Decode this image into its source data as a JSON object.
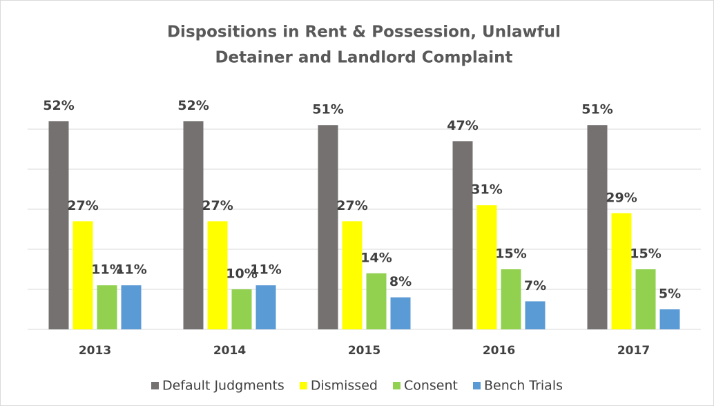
{
  "chart_data": {
    "type": "bar",
    "title": [
      "Dispositions in Rent & Possession, Unlawful",
      "Detainer and Landlord Complaint"
    ],
    "categories": [
      "2013",
      "2014",
      "2015",
      "2016",
      "2017"
    ],
    "series": [
      {
        "name": "Default Judgments",
        "color": "#767171",
        "values": [
          52,
          52,
          51,
          47,
          51
        ],
        "value_labels": [
          "52%",
          "52%",
          "51%",
          "47%",
          "51%"
        ]
      },
      {
        "name": "Dismissed",
        "color": "#ffff00",
        "values": [
          27,
          27,
          27,
          31,
          29
        ],
        "value_labels": [
          "27%",
          "27%",
          "27%",
          "31%",
          "29%"
        ]
      },
      {
        "name": "Consent",
        "color": "#92d050",
        "values": [
          11,
          10,
          14,
          15,
          15
        ],
        "value_labels": [
          "11%",
          "10%",
          "14%",
          "15%",
          "15%"
        ]
      },
      {
        "name": "Bench Trials",
        "color": "#5b9bd5",
        "values": [
          11,
          11,
          8,
          7,
          5
        ],
        "value_labels": [
          "11%",
          "11%",
          "8%",
          "7%",
          "5%"
        ]
      }
    ],
    "ylim": [
      0,
      55
    ],
    "yticks": [
      0,
      10,
      20,
      30,
      40,
      50
    ],
    "grid": true,
    "legend": "bottom"
  }
}
